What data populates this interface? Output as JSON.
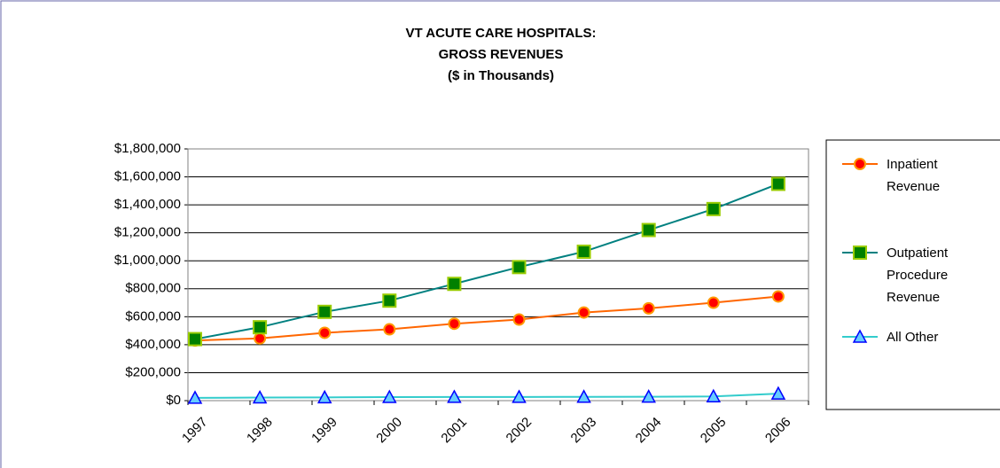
{
  "chart_data": {
    "type": "line",
    "title": [
      "VT ACUTE CARE HOSPITALS:",
      "GROSS REVENUES",
      "($ in Thousands)"
    ],
    "categories": [
      "1997",
      "1998",
      "1999",
      "2000",
      "2001",
      "2002",
      "2003",
      "2004",
      "2005",
      "2006"
    ],
    "series": [
      {
        "name": "Inpatient Revenue",
        "color": "#ff6600",
        "marker": "circle",
        "marker_fill": "#ff0000",
        "marker_edge": "#ff9900",
        "values": [
          430000,
          445000,
          485000,
          510000,
          550000,
          580000,
          630000,
          660000,
          700000,
          745000
        ]
      },
      {
        "name": "Outpatient Procedure Revenue",
        "color": "#008080",
        "marker": "square",
        "marker_fill": "#008000",
        "marker_edge": "#99cc00",
        "values": [
          440000,
          525000,
          635000,
          715000,
          835000,
          955000,
          1065000,
          1220000,
          1370000,
          1550000
        ]
      },
      {
        "name": "All Other",
        "color": "#33cccc",
        "marker": "triangle",
        "marker_fill": "#66ccff",
        "marker_edge": "#0000ff",
        "values": [
          20000,
          22000,
          23000,
          25000,
          26000,
          26000,
          27000,
          28000,
          30000,
          50000
        ]
      }
    ],
    "ylim": [
      0,
      1800000
    ],
    "yticks": [
      {
        "value": 0,
        "label": "$0"
      },
      {
        "value": 200000,
        "label": "$200,000"
      },
      {
        "value": 400000,
        "label": "$400,000"
      },
      {
        "value": 600000,
        "label": "$600,000"
      },
      {
        "value": 800000,
        "label": "$800,000"
      },
      {
        "value": 1000000,
        "label": "$1,000,000"
      },
      {
        "value": 1200000,
        "label": "$1,200,000"
      },
      {
        "value": 1400000,
        "label": "$1,400,000"
      },
      {
        "value": 1600000,
        "label": "$1,600,000"
      },
      {
        "value": 1800000,
        "label": "$1,800,000"
      }
    ],
    "grid": true,
    "legend": "right"
  }
}
